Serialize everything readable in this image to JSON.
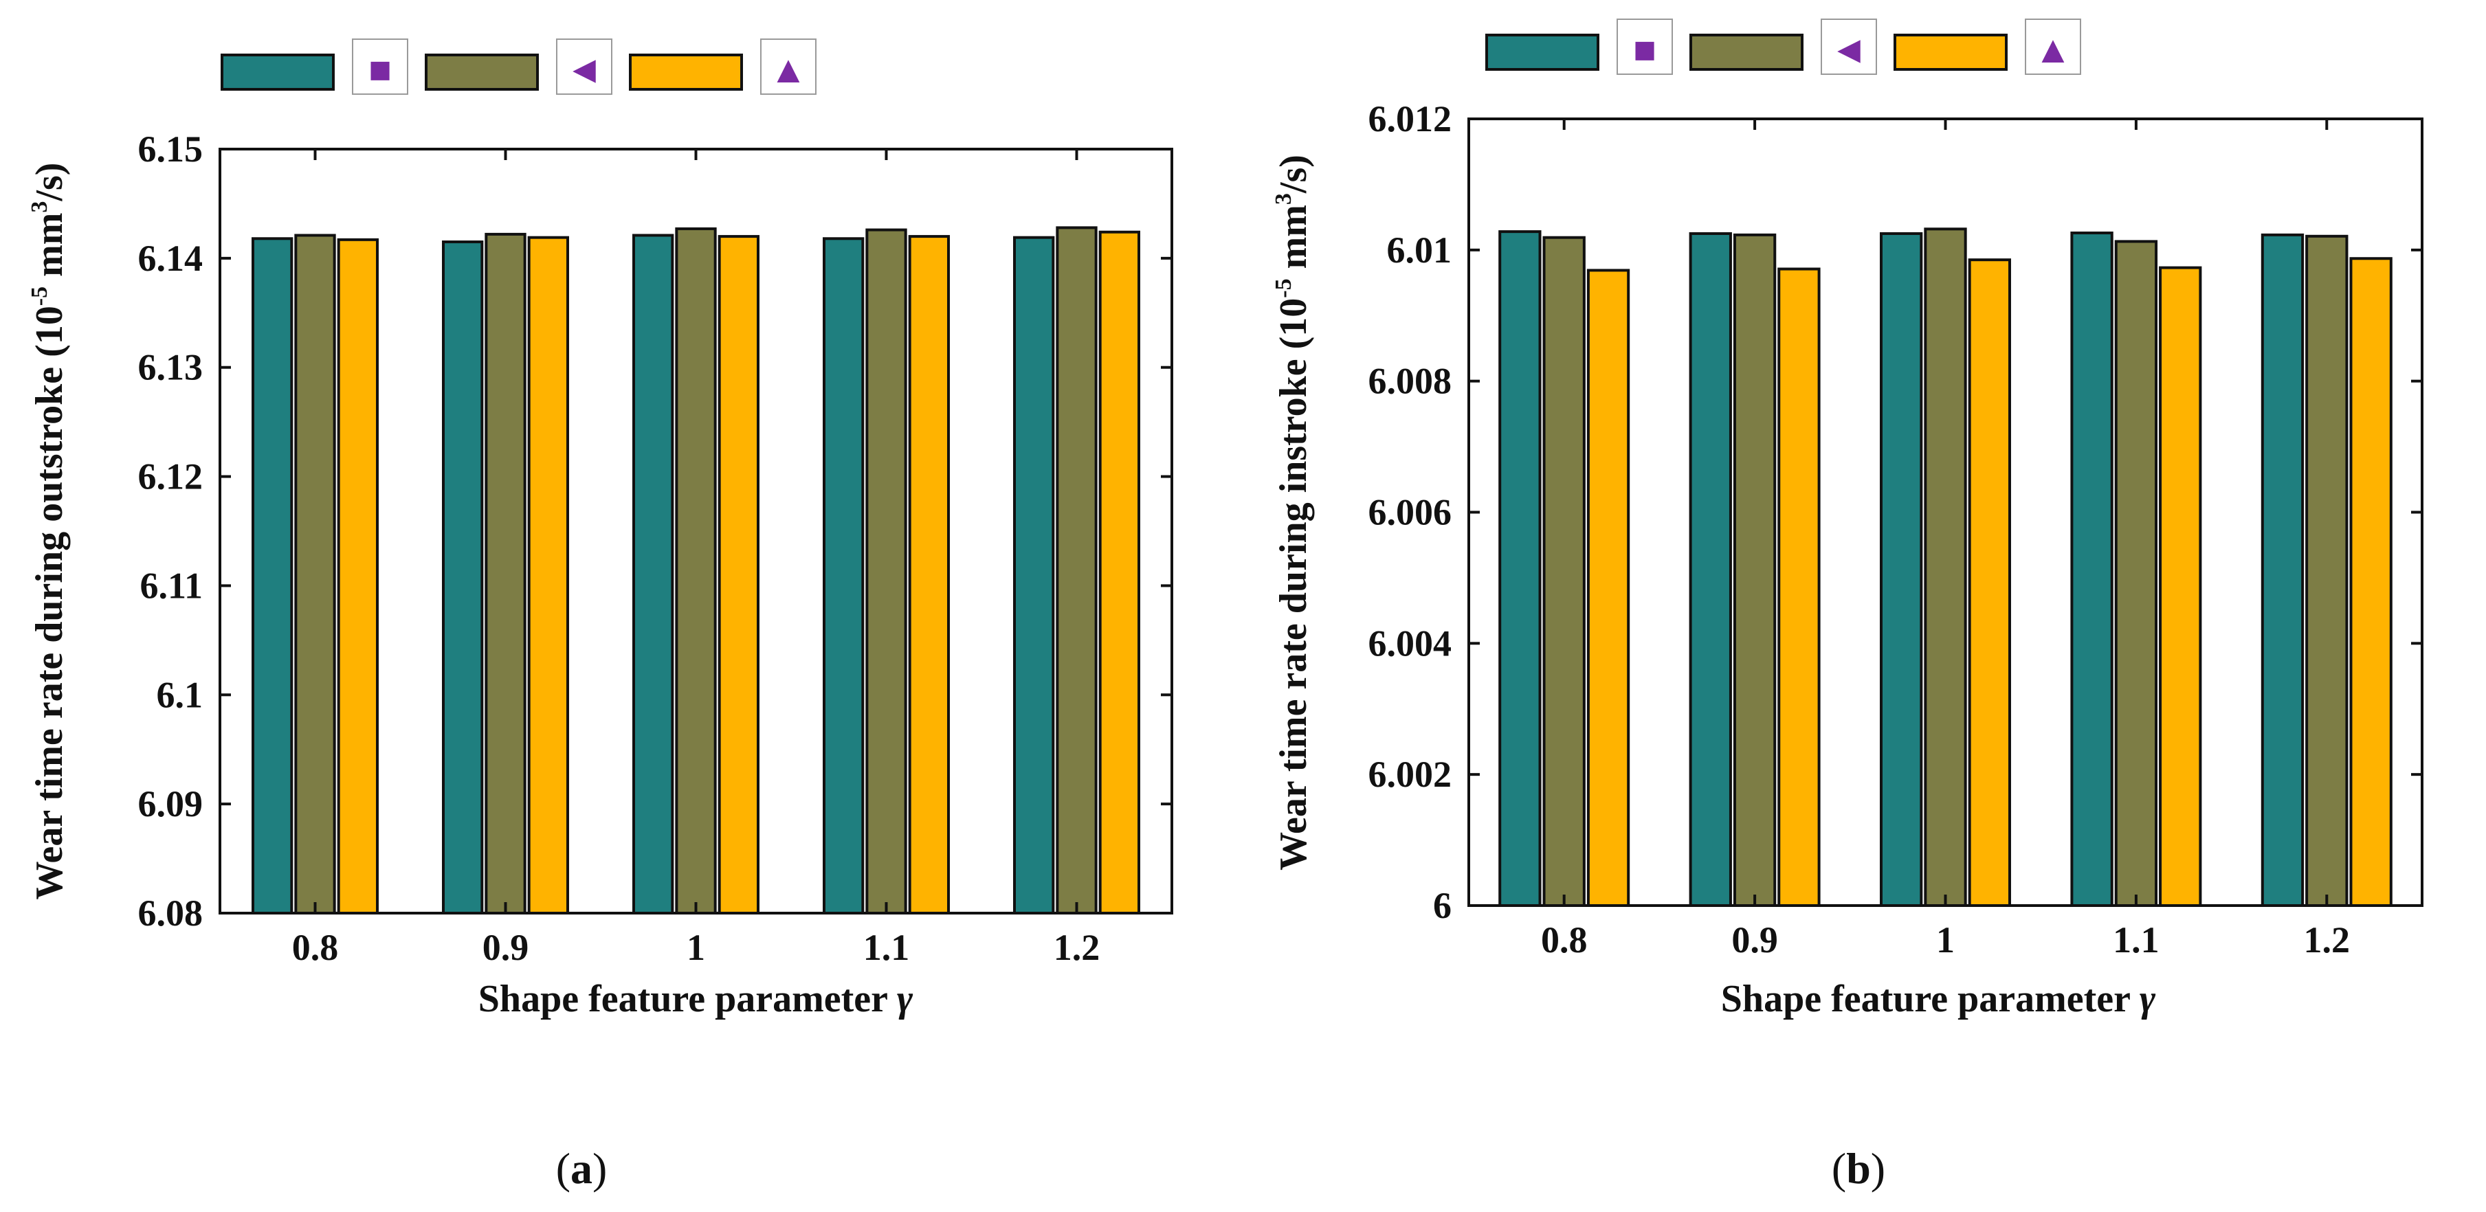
{
  "chart_data": [
    {
      "type": "bar",
      "panel_label": "a",
      "categories": [
        "0.8",
        "0.9",
        "1",
        "1.1",
        "1.2"
      ],
      "series": [
        {
          "name": "square",
          "marker": "■",
          "color": "#1f7f7f",
          "values": [
            6.1418,
            6.1415,
            6.1421,
            6.1418,
            6.1419
          ]
        },
        {
          "name": "triangle-left",
          "marker": "◄",
          "color": "#7d7d45",
          "values": [
            6.1421,
            6.1422,
            6.1427,
            6.1426,
            6.1428
          ]
        },
        {
          "name": "triangle-up",
          "marker": "▲",
          "color": "#ffb300",
          "values": [
            6.1417,
            6.1419,
            6.142,
            6.142,
            6.1424
          ]
        }
      ],
      "ylim": [
        6.08,
        6.15
      ],
      "yticks": [
        "6.08",
        "6.09",
        "6.1",
        "6.11",
        "6.12",
        "6.13",
        "6.14",
        "6.15"
      ],
      "xlabel_prefix": "Shape feature parameter ",
      "xlabel_symbol": "γ",
      "ylabel_prefix": "Wear time rate during outstroke (10",
      "ylabel_exp": "-5",
      "ylabel_mid": " mm",
      "ylabel_exp2": "3",
      "ylabel_suffix": "/s)",
      "legend_position": "top-left, above plot",
      "grid": false
    },
    {
      "type": "bar",
      "panel_label": "b",
      "categories": [
        "0.8",
        "0.9",
        "1",
        "1.1",
        "1.2"
      ],
      "series": [
        {
          "name": "square",
          "marker": "■",
          "color": "#1f7f7f",
          "values": [
            6.01028,
            6.01025,
            6.01025,
            6.01026,
            6.01023
          ]
        },
        {
          "name": "triangle-left",
          "marker": "◄",
          "color": "#7d7d45",
          "values": [
            6.01019,
            6.01023,
            6.01032,
            6.01013,
            6.01021
          ]
        },
        {
          "name": "triangle-up",
          "marker": "▲",
          "color": "#ffb300",
          "values": [
            6.00969,
            6.00971,
            6.00985,
            6.00973,
            6.00987
          ]
        }
      ],
      "ylim": [
        6.0,
        6.012
      ],
      "yticks": [
        "6",
        "6.002",
        "6.004",
        "6.006",
        "6.008",
        "6.01",
        "6.012"
      ],
      "xlabel_prefix": "Shape feature parameter ",
      "xlabel_symbol": "γ",
      "ylabel_prefix": "Wear time rate during instroke (10",
      "ylabel_exp": "-5",
      "ylabel_mid": " mm",
      "ylabel_exp2": "3",
      "ylabel_suffix": "/s)",
      "legend_position": "top-left, above plot",
      "grid": false
    }
  ],
  "captions": {
    "open": "(",
    "close": ")"
  }
}
